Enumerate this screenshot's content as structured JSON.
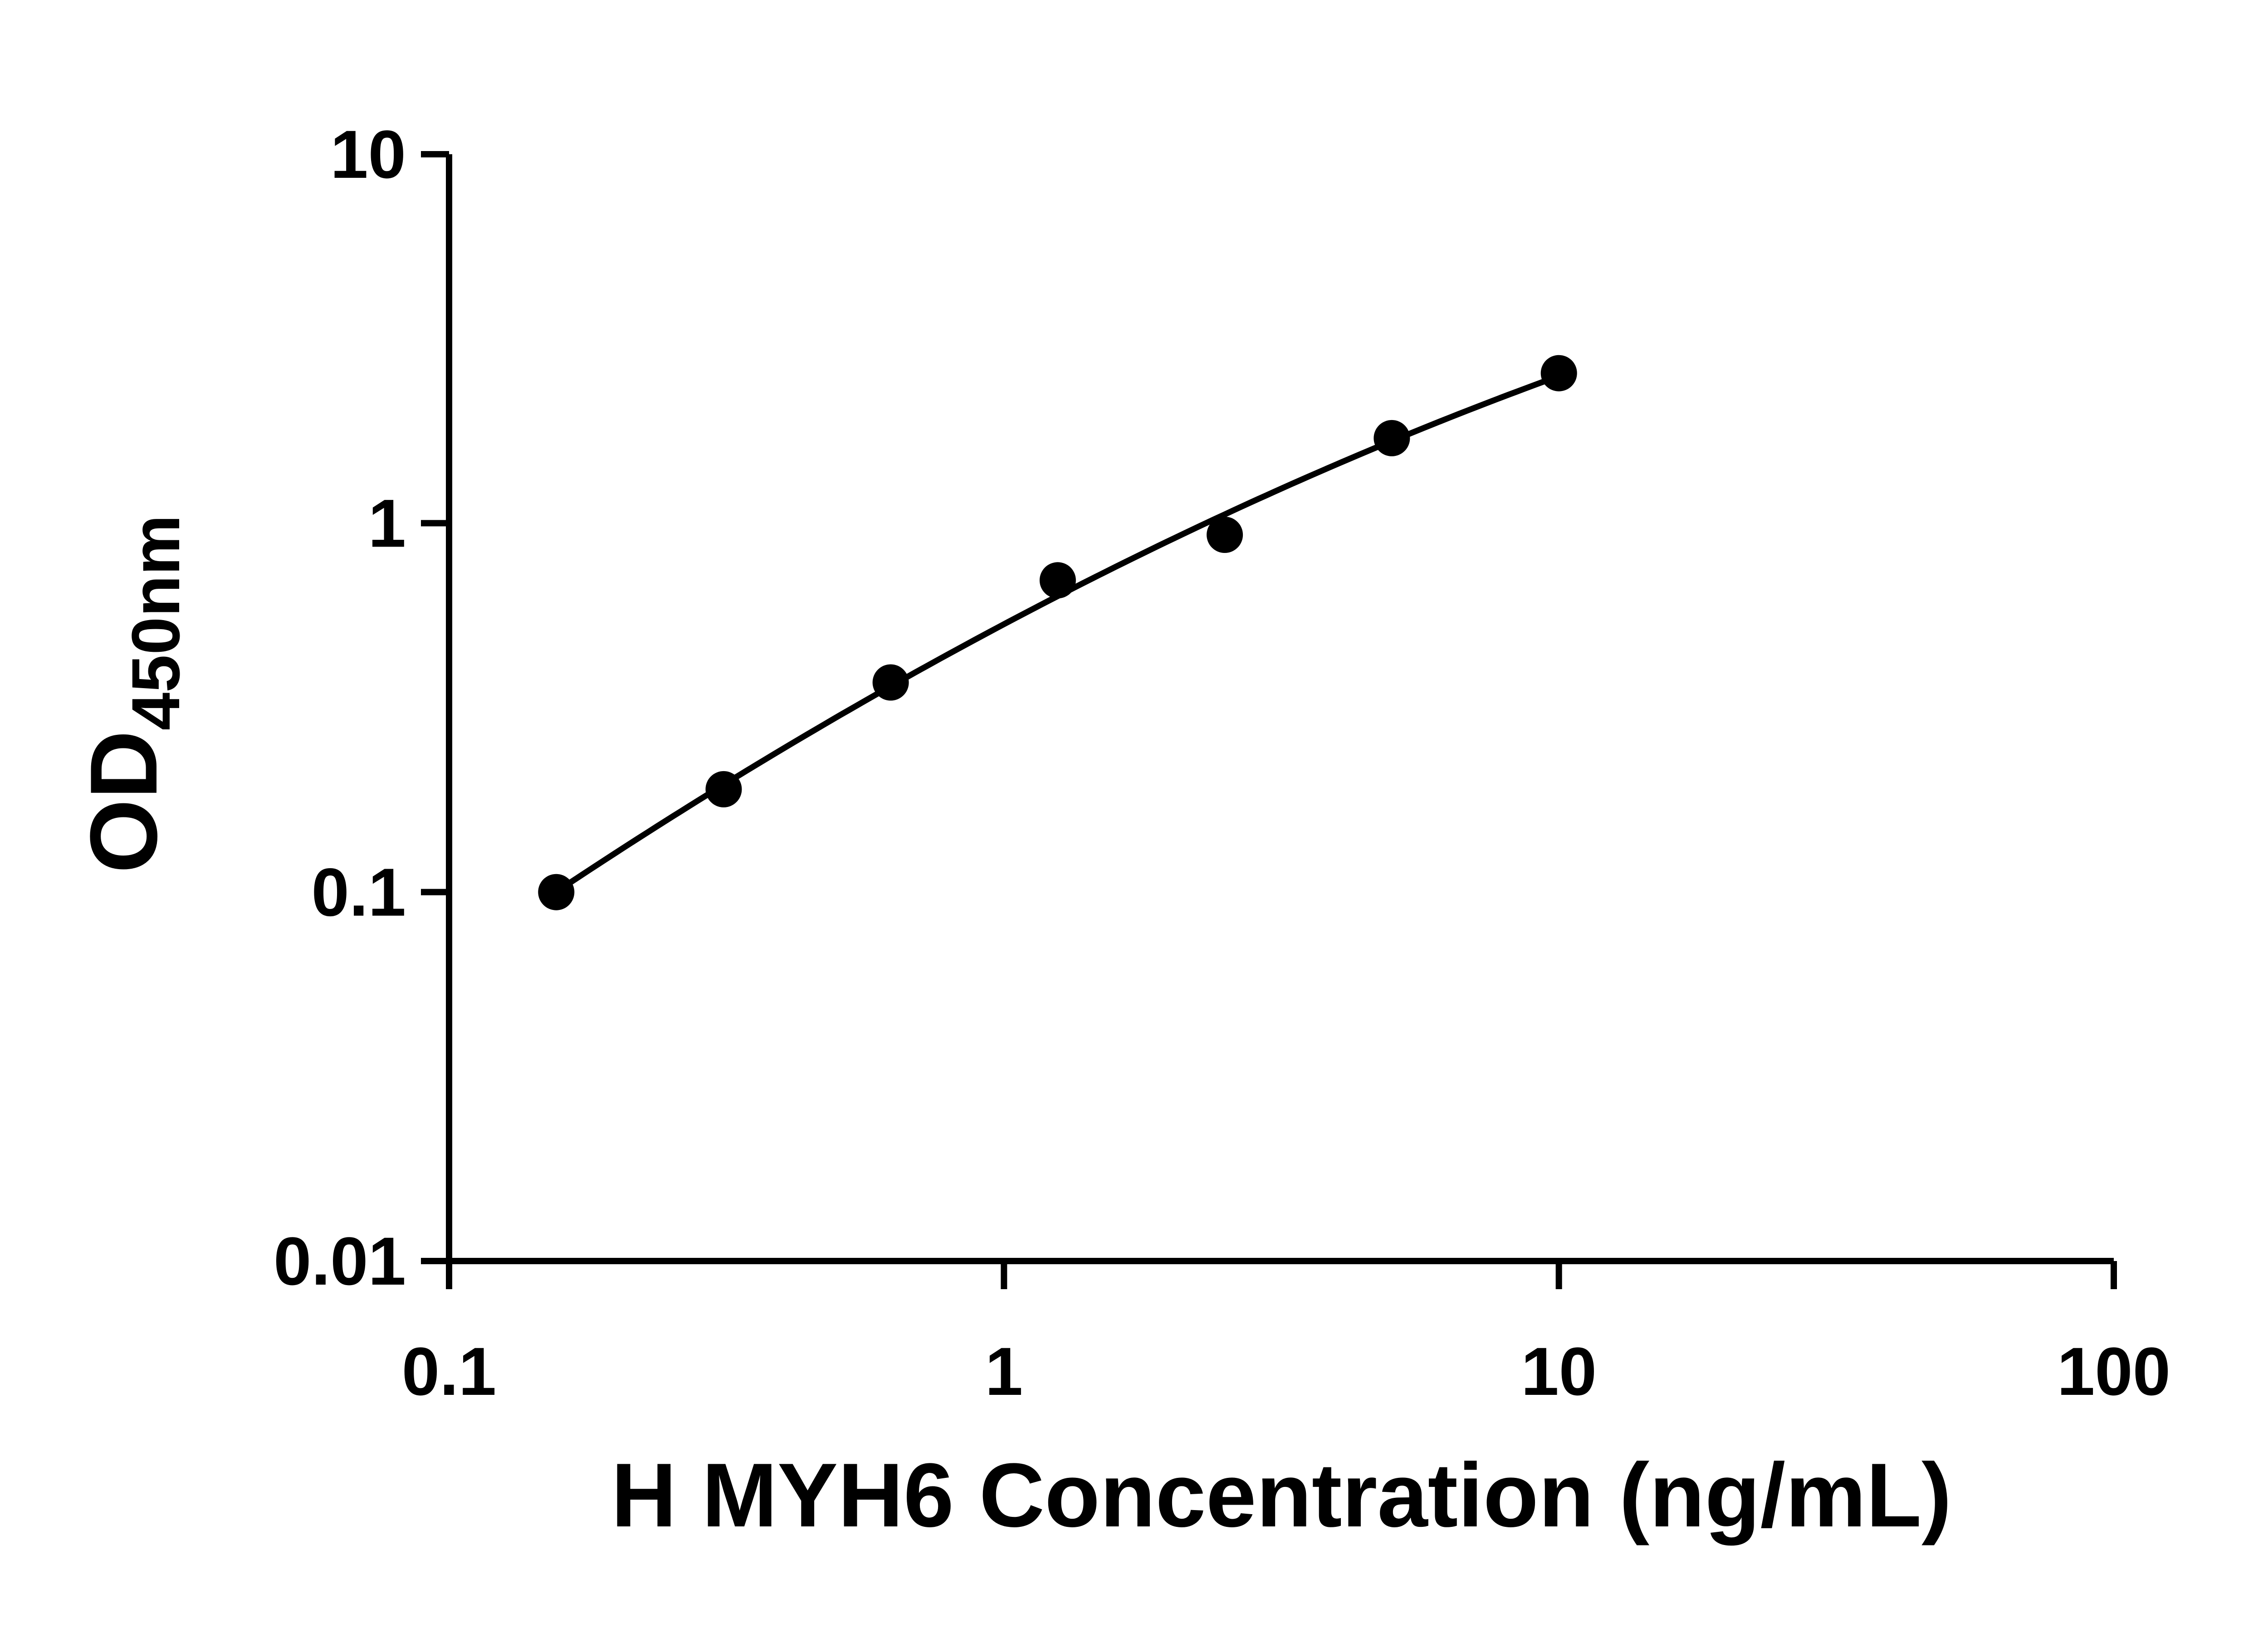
{
  "chart_data": {
    "type": "scatter",
    "title": "",
    "xlabel": "H MYH6 Concentration (ng/mL)",
    "ylabel": "OD",
    "ylabel_subscript": "450nm",
    "x_scale": "log",
    "y_scale": "log",
    "xlim": [
      0.1,
      100
    ],
    "ylim": [
      0.01,
      10
    ],
    "x_ticks": [
      0.1,
      1,
      10,
      100
    ],
    "x_tick_labels": [
      "0.1",
      "1",
      "10",
      "100"
    ],
    "y_ticks": [
      0.01,
      0.1,
      1,
      10
    ],
    "y_tick_labels": [
      "0.01",
      "0.1",
      "1",
      "10"
    ],
    "grid": false,
    "legend_position": "none",
    "series": [
      {
        "x": [
          0.156,
          0.3125,
          0.625,
          1.25,
          2.5,
          5,
          10
        ],
        "y": [
          0.1,
          0.19,
          0.37,
          0.7,
          0.93,
          1.7,
          2.55
        ],
        "marker": "circle",
        "fit": "log-quadratic"
      }
    ],
    "colors": {
      "points": "#000000",
      "line": "#000000",
      "axis": "#000000",
      "background": "#ffffff"
    }
  }
}
